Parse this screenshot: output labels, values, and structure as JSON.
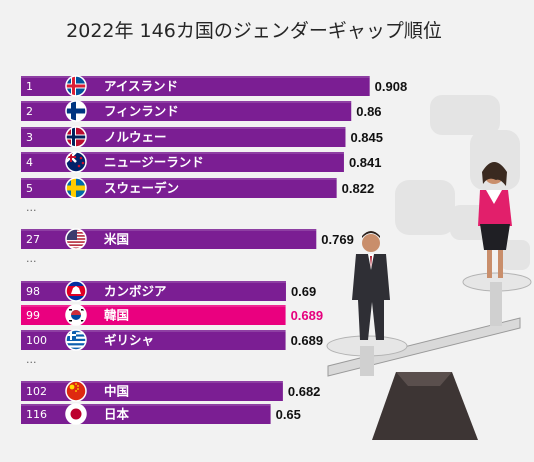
{
  "title": "2022年 146カ国のジェンダーギャップ順位",
  "colors": {
    "bar": "#7b1e93",
    "bar_highlight": "#ea007f",
    "value_highlight": "#e6007e",
    "background": "#f2f2f2"
  },
  "chart_data": {
    "type": "bar",
    "orientation": "horizontal",
    "title": "2022年 146カ国のジェンダーギャップ順位",
    "xlim": [
      0,
      1
    ],
    "grid": false,
    "gap_marker": "...",
    "rows": [
      {
        "rank": "1",
        "country": "アイスランド",
        "value": 0.908,
        "label": "0.908",
        "flag": "iceland-flag"
      },
      {
        "rank": "2",
        "country": "フィンランド",
        "value": 0.86,
        "label": "0.86",
        "flag": "finland-flag"
      },
      {
        "rank": "3",
        "country": "ノルウェー",
        "value": 0.845,
        "label": "0.845",
        "flag": "norway-flag"
      },
      {
        "rank": "4",
        "country": "ニュージーランド",
        "value": 0.841,
        "label": "0.841",
        "flag": "new-zealand-flag"
      },
      {
        "rank": "5",
        "country": "スウェーデン",
        "value": 0.822,
        "label": "0.822",
        "flag": "sweden-flag"
      },
      {
        "gap": true
      },
      {
        "rank": "27",
        "country": "米国",
        "value": 0.769,
        "label": "0.769",
        "flag": "usa-flag"
      },
      {
        "gap": true
      },
      {
        "rank": "98",
        "country": "カンボジア",
        "value": 0.69,
        "label": "0.69",
        "flag": "cambodia-flag"
      },
      {
        "rank": "99",
        "country": "韓国",
        "value": 0.689,
        "label": "0.689",
        "flag": "south-korea-flag",
        "highlight": true
      },
      {
        "rank": "100",
        "country": "ギリシャ",
        "value": 0.689,
        "label": "0.689",
        "flag": "greece-flag"
      },
      {
        "gap": true
      },
      {
        "rank": "102",
        "country": "中国",
        "value": 0.682,
        "label": "0.682",
        "flag": "china-flag"
      },
      {
        "rank": "116",
        "country": "日本",
        "value": 0.65,
        "label": "0.65",
        "flag": "japan-flag"
      }
    ]
  },
  "illustration": {
    "description_icon": "balance-scale-icon",
    "figures": [
      "businesswoman-icon",
      "businessman-icon"
    ]
  }
}
